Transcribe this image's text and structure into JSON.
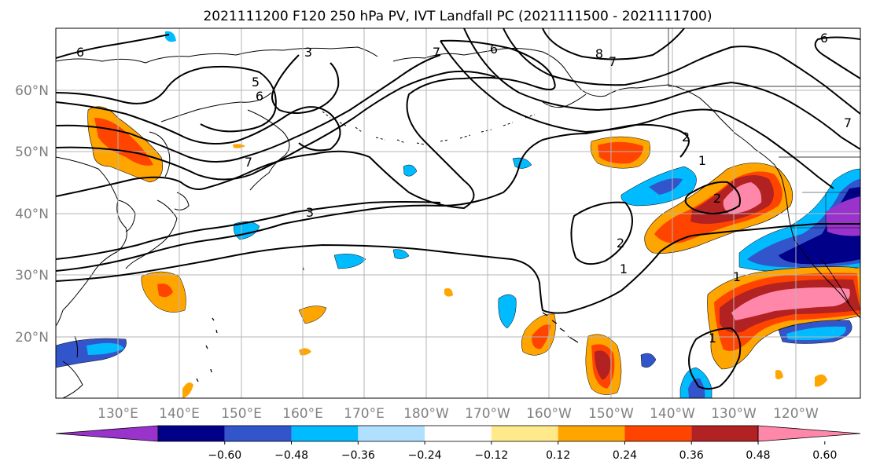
{
  "title": "2021111200 F120 250 hPa PV, IVT Landfall PC (2021111500 - 2021111700)",
  "lat_labels": [
    "60°N",
    "50°N",
    "40°N",
    "30°N",
    "20°N"
  ],
  "lon_labels": [
    "130°E",
    "140°E",
    "150°E",
    "160°E",
    "170°E",
    "180°W",
    "170°W",
    "160°W",
    "150°W",
    "140°W",
    "130°W",
    "120°W"
  ],
  "colorbar": {
    "colors": [
      "#9933cc",
      "#000088",
      "#3355cc",
      "#00bbff",
      "#b0e0ff",
      "#ffffff",
      "#ffe98a",
      "#ffa500",
      "#ff4400",
      "#b22222",
      "#ff88aa"
    ],
    "tick_labels": [
      "−0.60",
      "−0.48",
      "−0.36",
      "−0.24",
      "−0.12",
      "0.12",
      "0.24",
      "0.36",
      "0.48",
      "0.60"
    ]
  },
  "contour_labels": [
    "6",
    "3",
    "5",
    "6",
    "7",
    "7",
    "6",
    "8",
    "7",
    "6",
    "7",
    "3",
    "2",
    "1",
    "2",
    "1",
    "1",
    "2",
    "1"
  ]
}
